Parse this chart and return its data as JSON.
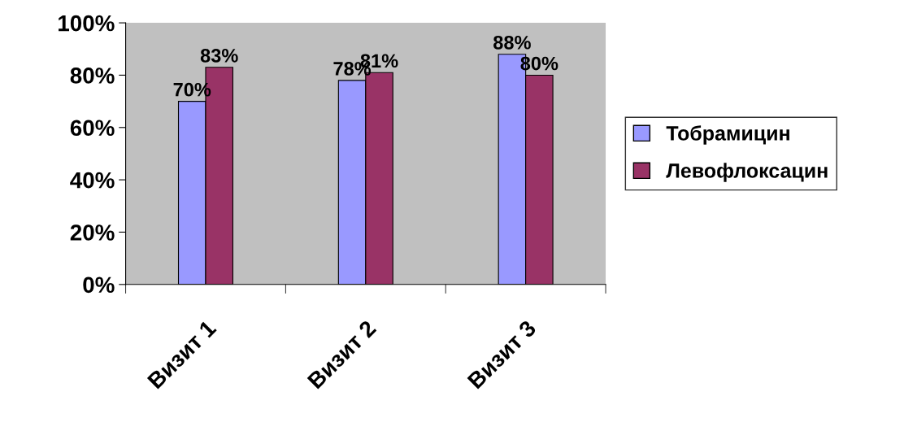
{
  "chart_data": {
    "type": "bar",
    "categories": [
      "Визит 1",
      "Визит 2",
      "Визит 3"
    ],
    "series": [
      {
        "name": "Тобрамицин",
        "color": "#9999ff",
        "values": [
          70,
          78,
          88
        ],
        "value_labels": [
          "70%",
          "78%",
          "88%"
        ]
      },
      {
        "name": "Левофлоксацин",
        "color": "#993366",
        "values": [
          83,
          81,
          80
        ],
        "value_labels": [
          "83%",
          "81%",
          "80%"
        ]
      }
    ],
    "ylim": [
      0,
      100
    ],
    "yticks": [
      {
        "value": 0,
        "label": "0%"
      },
      {
        "value": 20,
        "label": "20%"
      },
      {
        "value": 40,
        "label": "40%"
      },
      {
        "value": 60,
        "label": "60%"
      },
      {
        "value": 80,
        "label": "80%"
      },
      {
        "value": 100,
        "label": "100%"
      }
    ],
    "grid": false,
    "legend": "right"
  }
}
